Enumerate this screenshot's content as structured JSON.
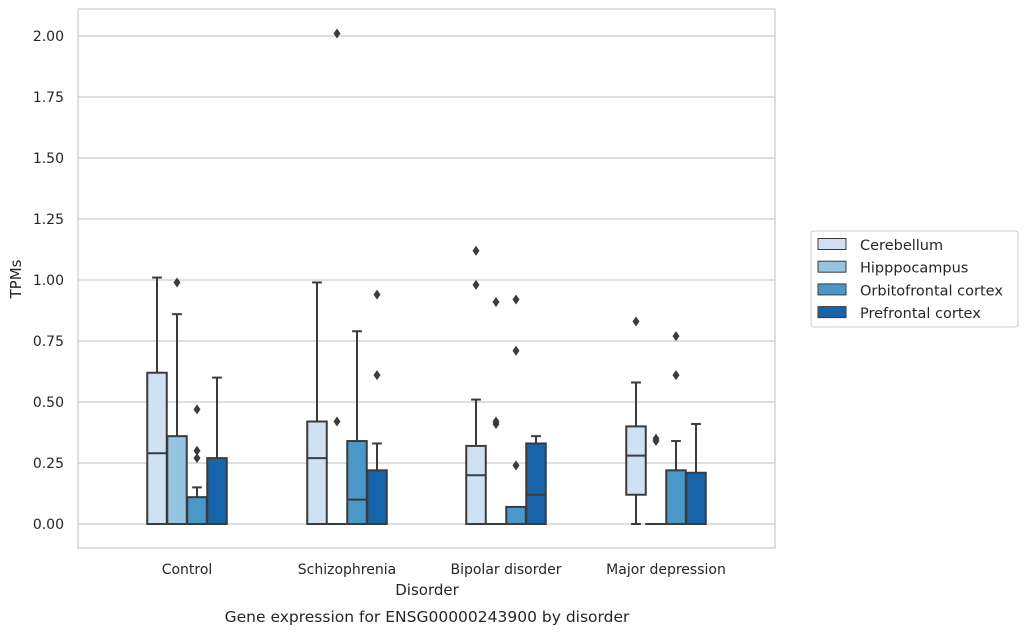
{
  "chart_data": {
    "type": "box",
    "title": "",
    "caption": "Gene expression for ENSG00000243900 by disorder",
    "xlabel": "Disorder",
    "ylabel": "TPMs",
    "ylim": [
      -0.1,
      2.11
    ],
    "yticks": [
      0.0,
      0.25,
      0.5,
      0.75,
      1.0,
      1.25,
      1.5,
      1.75,
      2.0
    ],
    "ytick_labels": [
      "0.00",
      "0.25",
      "0.50",
      "0.75",
      "1.00",
      "1.25",
      "1.50",
      "1.75",
      "2.00"
    ],
    "grid": "horizontal",
    "legend_position": "right",
    "categories": [
      "Control",
      "Schizophrenia",
      "Bipolar disorder",
      "Major depression"
    ],
    "series": [
      {
        "name": "Cerebellum",
        "color": "#d0e1f2",
        "boxes": [
          {
            "whislo": 0.0,
            "q1": 0.0,
            "med": 0.29,
            "q3": 0.62,
            "whishi": 1.01,
            "fliers": []
          },
          {
            "whislo": 0.0,
            "q1": 0.0,
            "med": 0.27,
            "q3": 0.42,
            "whishi": 0.99,
            "fliers": []
          },
          {
            "whislo": 0.0,
            "q1": 0.0,
            "med": 0.2,
            "q3": 0.32,
            "whishi": 0.51,
            "fliers": [
              0.98,
              1.12
            ]
          },
          {
            "whislo": 0.0,
            "q1": 0.12,
            "med": 0.28,
            "q3": 0.4,
            "whishi": 0.58,
            "fliers": [
              0.83
            ]
          }
        ]
      },
      {
        "name": "Hipppocampus",
        "color": "#94c4df",
        "boxes": [
          {
            "whislo": 0.0,
            "q1": 0.0,
            "med": 0.0,
            "q3": 0.36,
            "whishi": 0.86,
            "fliers": [
              0.99
            ]
          },
          {
            "whislo": 0.0,
            "q1": 0.0,
            "med": 0.0,
            "q3": 0.0,
            "whishi": 0.0,
            "fliers": [
              0.42,
              2.01
            ]
          },
          {
            "whislo": 0.0,
            "q1": 0.0,
            "med": 0.0,
            "q3": 0.0,
            "whishi": 0.0,
            "fliers": [
              0.41,
              0.42,
              0.91
            ]
          },
          {
            "whislo": 0.0,
            "q1": 0.0,
            "med": 0.0,
            "q3": 0.0,
            "whishi": 0.0,
            "fliers": [
              0.34,
              0.35
            ]
          }
        ]
      },
      {
        "name": "Orbitofrontal cortex",
        "color": "#4a98c9",
        "boxes": [
          {
            "whislo": 0.0,
            "q1": 0.0,
            "med": 0.0,
            "q3": 0.11,
            "whishi": 0.15,
            "fliers": [
              0.27,
              0.3,
              0.47
            ]
          },
          {
            "whislo": 0.0,
            "q1": 0.0,
            "med": 0.1,
            "q3": 0.34,
            "whishi": 0.79,
            "fliers": []
          },
          {
            "whislo": 0.0,
            "q1": 0.0,
            "med": 0.0,
            "q3": 0.07,
            "whishi": 0.07,
            "fliers": [
              0.24,
              0.71,
              0.92
            ]
          },
          {
            "whislo": 0.0,
            "q1": 0.0,
            "med": 0.0,
            "q3": 0.22,
            "whishi": 0.34,
            "fliers": [
              0.61,
              0.77
            ]
          }
        ]
      },
      {
        "name": "Prefrontal cortex",
        "color": "#1764ab",
        "boxes": [
          {
            "whislo": 0.0,
            "q1": 0.0,
            "med": 0.0,
            "q3": 0.27,
            "whishi": 0.6,
            "fliers": []
          },
          {
            "whislo": 0.0,
            "q1": 0.0,
            "med": 0.0,
            "q3": 0.22,
            "whishi": 0.33,
            "fliers": [
              0.61,
              0.94
            ]
          },
          {
            "whislo": 0.0,
            "q1": 0.0,
            "med": 0.12,
            "q3": 0.33,
            "whishi": 0.36,
            "fliers": []
          },
          {
            "whislo": 0.0,
            "q1": 0.0,
            "med": 0.0,
            "q3": 0.21,
            "whishi": 0.41,
            "fliers": []
          }
        ]
      }
    ]
  }
}
